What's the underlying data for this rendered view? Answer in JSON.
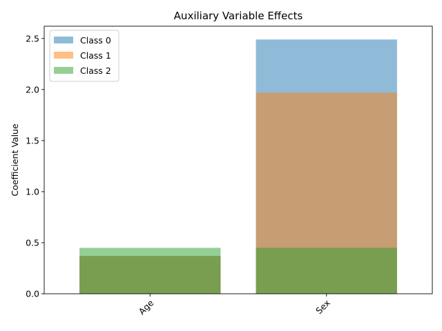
{
  "chart_data": {
    "type": "bar",
    "title": "Auxiliary Variable Effects",
    "xlabel": "",
    "ylabel": "Coefficient Value",
    "categories": [
      "Age",
      "Sex"
    ],
    "series": [
      {
        "name": "Class 0",
        "color": "#1f77b4",
        "values": [
          0.37,
          2.49
        ]
      },
      {
        "name": "Class 1",
        "color": "#ff7f0e",
        "values": [
          0.37,
          1.97
        ]
      },
      {
        "name": "Class 2",
        "color": "#2ca02c",
        "values": [
          0.45,
          0.45
        ]
      }
    ],
    "ylim": [
      0,
      2.62
    ],
    "yticks": [
      "0.0",
      "0.5",
      "1.0",
      "1.5",
      "2.0",
      "2.5"
    ],
    "bar_opacity": 0.5,
    "grid": false,
    "legend_position": "top-left",
    "xtick_rotation": "45 degrees"
  }
}
